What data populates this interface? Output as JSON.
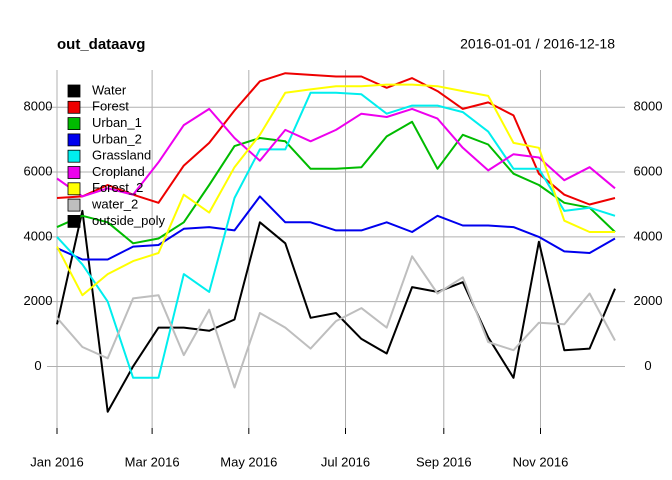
{
  "chart_data": {
    "type": "line",
    "title": "out_dataavg",
    "subtitle": "2016-01-01 / 2016-12-18",
    "x": [
      "2016-01-01",
      "2016-01-17",
      "2016-02-02",
      "2016-02-18",
      "2016-03-05",
      "2016-03-21",
      "2016-04-06",
      "2016-04-22",
      "2016-05-08",
      "2016-05-24",
      "2016-06-09",
      "2016-06-25",
      "2016-07-11",
      "2016-07-27",
      "2016-08-12",
      "2016-08-28",
      "2016-09-13",
      "2016-09-29",
      "2016-10-15",
      "2016-10-31",
      "2016-11-16",
      "2016-12-02",
      "2016-12-18"
    ],
    "xlim": [
      "2016-01-01",
      "2016-12-18"
    ],
    "xticks": [
      {
        "value": "2016-01-01",
        "label": "Jan 2016"
      },
      {
        "value": "2016-03-01",
        "label": "Mar 2016"
      },
      {
        "value": "2016-05-01",
        "label": "May 2016"
      },
      {
        "value": "2016-07-01",
        "label": "Jul 2016"
      },
      {
        "value": "2016-09-01",
        "label": "Sep 2016"
      },
      {
        "value": "2016-11-01",
        "label": "Nov 2016"
      }
    ],
    "ylim": [
      -1900,
      9150
    ],
    "yticks": [
      0,
      2000,
      4000,
      6000,
      8000
    ],
    "grid": true,
    "legend": "top-left",
    "series": [
      {
        "name": "Water",
        "color": "#000000",
        "values": [
          1300,
          4800,
          -1400,
          0,
          1200,
          1200,
          1100,
          1450,
          4450,
          3800,
          1500,
          1650,
          850,
          400,
          2450,
          2300,
          2600,
          900,
          -350,
          3850,
          500,
          550,
          2400
        ]
      },
      {
        "name": "Forest",
        "color": "#ee0000",
        "values": [
          5200,
          5250,
          5600,
          5300,
          5050,
          6200,
          6900,
          7900,
          8800,
          9050,
          9000,
          8950,
          8950,
          8600,
          8900,
          8500,
          7950,
          8150,
          7750,
          5950,
          5300,
          5000,
          5200
        ]
      },
      {
        "name": "Urban_1",
        "color": "#00bb00",
        "values": [
          4300,
          4650,
          4450,
          3800,
          3950,
          4450,
          5600,
          6800,
          7050,
          6950,
          6100,
          6100,
          6150,
          7100,
          7550,
          6100,
          7150,
          6850,
          5950,
          5600,
          5050,
          4900,
          4150
        ]
      },
      {
        "name": "Urban_2",
        "color": "#0000ee",
        "values": [
          3650,
          3300,
          3300,
          3700,
          3750,
          4250,
          4300,
          4200,
          5250,
          4450,
          4450,
          4200,
          4200,
          4450,
          4150,
          4650,
          4350,
          4350,
          4300,
          4000,
          3550,
          3500,
          3950
        ]
      },
      {
        "name": "Grassland",
        "color": "#00eeee",
        "values": [
          4000,
          3150,
          2000,
          -350,
          -350,
          2850,
          2300,
          5200,
          6700,
          6700,
          8450,
          8450,
          8400,
          7800,
          8050,
          8050,
          7850,
          7250,
          6100,
          6100,
          4800,
          4900,
          4650
        ]
      },
      {
        "name": "Cropland",
        "color": "#ee00ee",
        "values": [
          5800,
          5250,
          5500,
          5300,
          6300,
          7450,
          7950,
          7050,
          6350,
          7300,
          6950,
          7300,
          7800,
          7700,
          7950,
          7650,
          6750,
          6050,
          6550,
          6450,
          5750,
          6150,
          5500
        ]
      },
      {
        "name": "Forest_2",
        "color": "#ffff00",
        "values": [
          3700,
          2200,
          2850,
          3250,
          3500,
          5300,
          4750,
          6150,
          7150,
          8450,
          8550,
          8650,
          8650,
          8700,
          8700,
          8650,
          8500,
          8350,
          6900,
          6750,
          4500,
          4150,
          4150
        ]
      },
      {
        "name": "water_2",
        "color": "#bebebe",
        "values": [
          1500,
          600,
          250,
          2100,
          2200,
          350,
          1750,
          -650,
          1650,
          1200,
          550,
          1400,
          1800,
          1200,
          3400,
          2250,
          2750,
          750,
          500,
          1350,
          1300,
          2250,
          800
        ]
      },
      {
        "name": "outside_poly",
        "color": "#000000",
        "values": [
          null,
          null,
          null,
          null,
          null,
          null,
          null,
          null,
          null,
          null,
          null,
          null,
          null,
          null,
          null,
          null,
          null,
          null,
          null,
          null,
          null,
          null,
          null
        ]
      }
    ]
  }
}
